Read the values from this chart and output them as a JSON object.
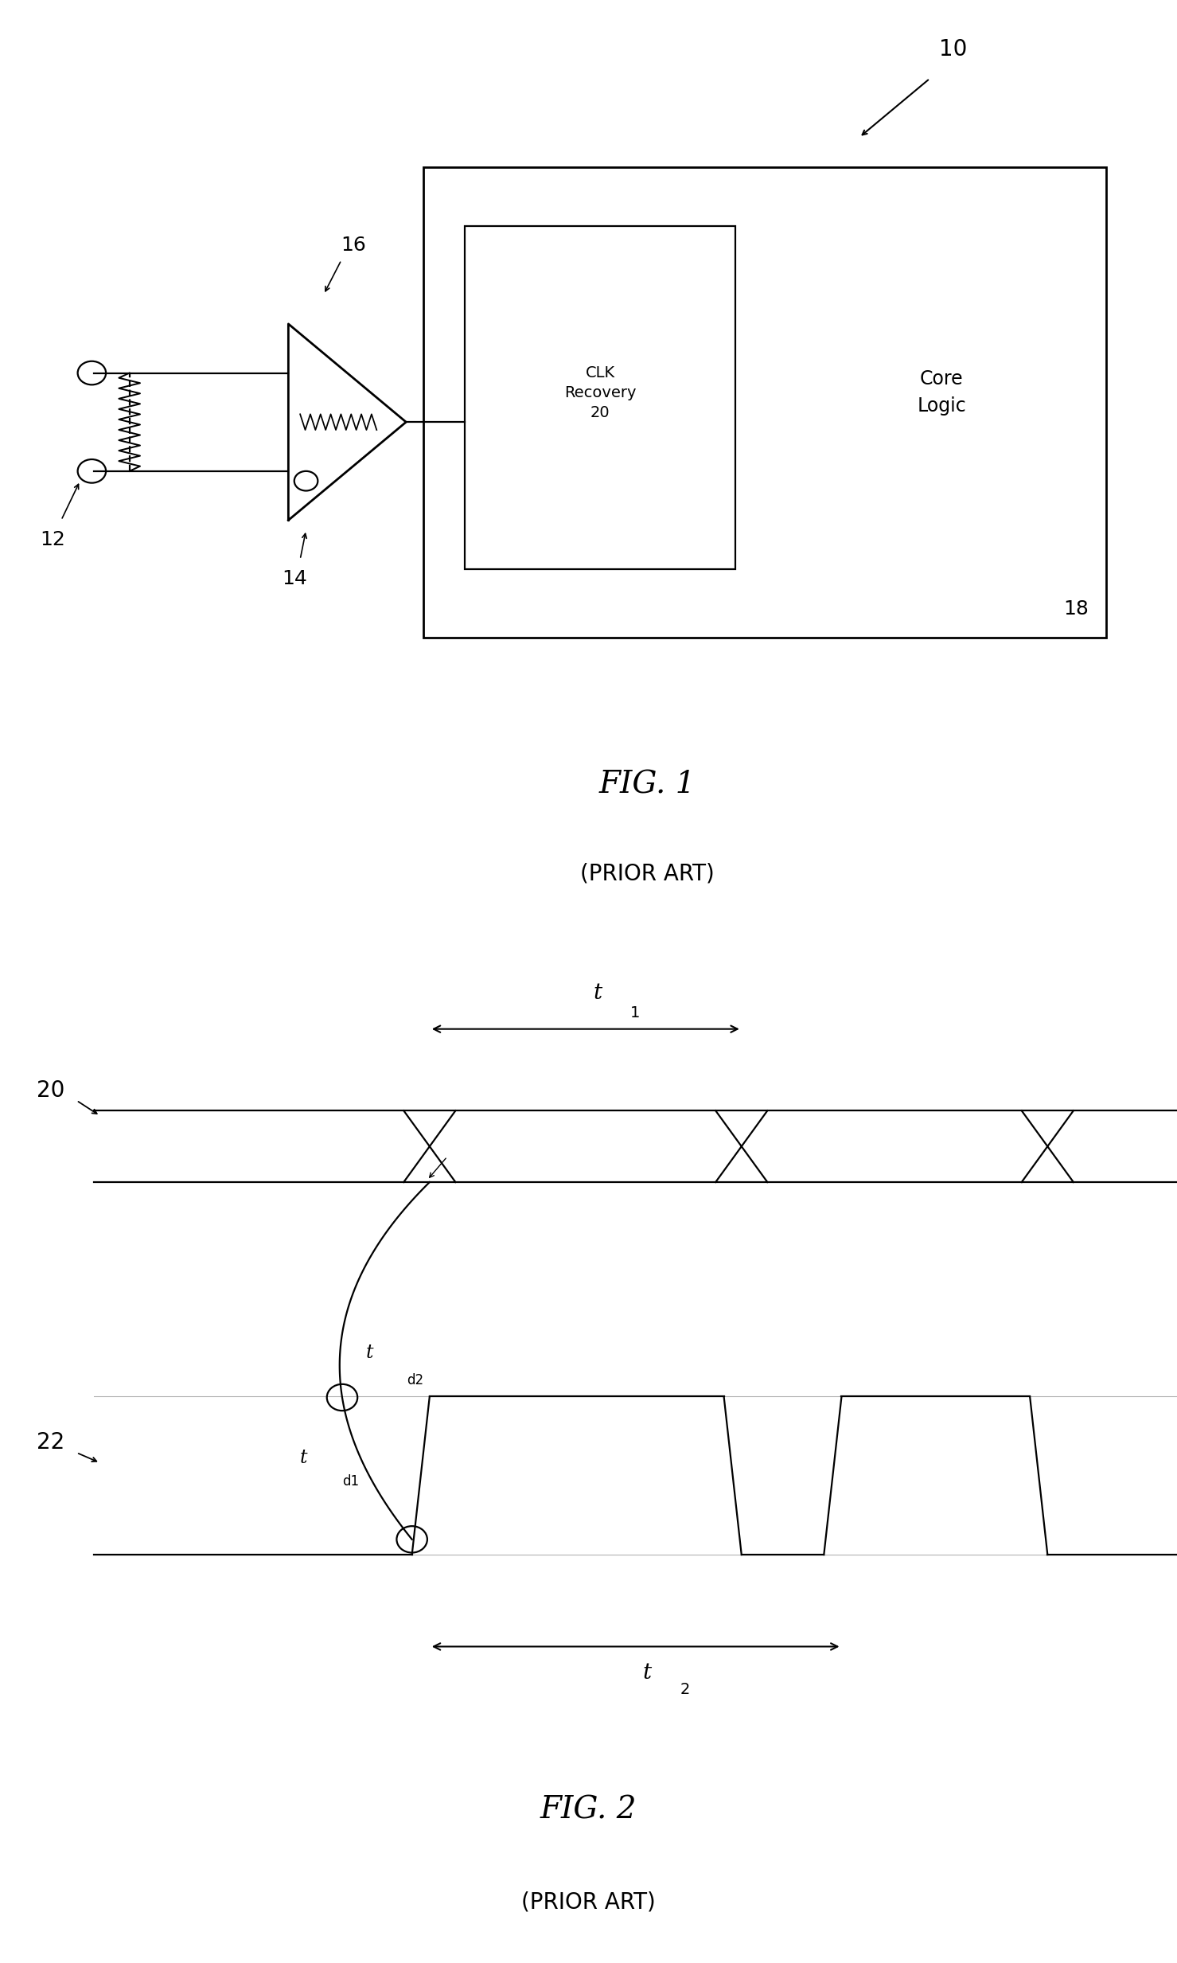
{
  "bg_color": "#ffffff",
  "line_color": "#000000",
  "fig_width": 14.79,
  "fig_height": 24.66,
  "fig1": {
    "title": "FIG. 1",
    "subtitle": "(PRIOR ART)",
    "label_10": "10",
    "label_12": "12",
    "label_14": "14",
    "label_16": "16",
    "label_18": "18",
    "label_20_clk": "CLK\nRecovery\n20",
    "label_core": "Core\nLogic"
  },
  "fig2": {
    "title": "FIG. 2",
    "subtitle": "(PRIOR ART)",
    "label_20": "20",
    "label_22": "22",
    "label_t1": "t",
    "label_t1_sub": "1",
    "label_t2": "t",
    "label_t2_sub": "2",
    "label_td1": "t",
    "label_td1_sub": "d1",
    "label_td2": "t",
    "label_td2_sub": "d2"
  }
}
